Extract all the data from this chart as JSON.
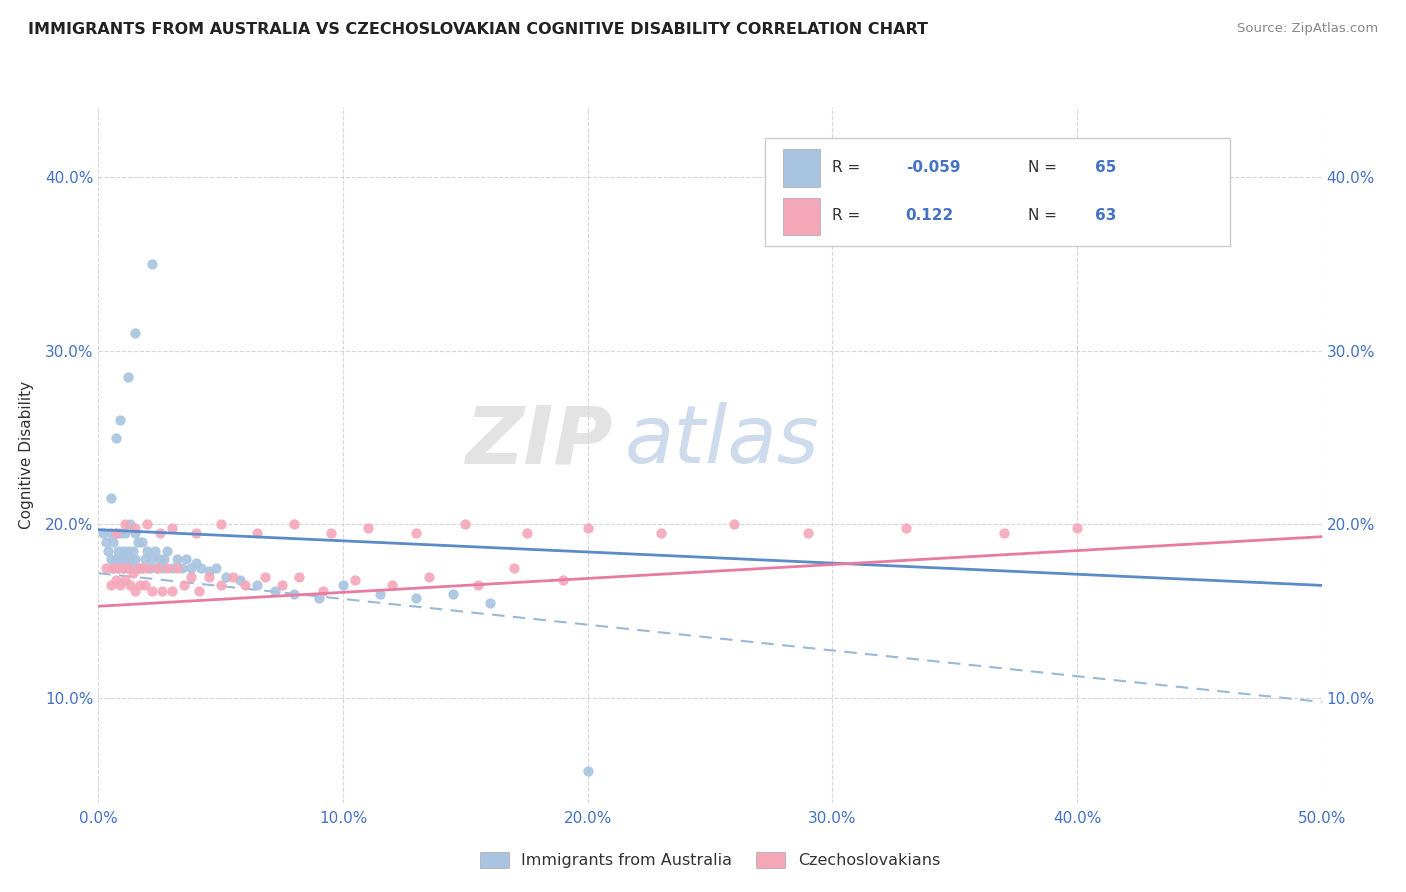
{
  "title": "IMMIGRANTS FROM AUSTRALIA VS CZECHOSLOVAKIAN COGNITIVE DISABILITY CORRELATION CHART",
  "source": "Source: ZipAtlas.com",
  "ylabel": "Cognitive Disability",
  "watermark_zip": "ZIP",
  "watermark_atlas": "atlas",
  "xlim": [
    0.0,
    0.5
  ],
  "ylim": [
    0.04,
    0.44
  ],
  "xticks": [
    0.0,
    0.1,
    0.2,
    0.3,
    0.4,
    0.5
  ],
  "yticks": [
    0.1,
    0.2,
    0.3,
    0.4
  ],
  "xtick_labels": [
    "0.0%",
    "10.0%",
    "20.0%",
    "30.0%",
    "40.0%",
    "50.0%"
  ],
  "ytick_labels": [
    "10.0%",
    "20.0%",
    "30.0%",
    "40.0%"
  ],
  "color_blue": "#a8c4e0",
  "color_pink": "#f4a7b9",
  "line_blue": "#5b8cc8",
  "line_pink": "#e87ca0",
  "line_dashed_color": "#9ab8d8",
  "background_color": "#ffffff",
  "grid_color": "#cccccc",
  "blue_line_x": [
    0.0,
    0.5
  ],
  "blue_line_y": [
    0.197,
    0.165
  ],
  "pink_line_x": [
    0.0,
    0.5
  ],
  "pink_line_y": [
    0.153,
    0.193
  ],
  "dash_line_x": [
    0.0,
    0.5
  ],
  "dash_line_y": [
    0.172,
    0.098
  ],
  "australia_x": [
    0.002,
    0.003,
    0.004,
    0.005,
    0.005,
    0.006,
    0.006,
    0.007,
    0.007,
    0.008,
    0.008,
    0.009,
    0.009,
    0.01,
    0.01,
    0.011,
    0.011,
    0.012,
    0.012,
    0.013,
    0.013,
    0.014,
    0.014,
    0.015,
    0.015,
    0.016,
    0.017,
    0.018,
    0.019,
    0.02,
    0.021,
    0.022,
    0.023,
    0.024,
    0.025,
    0.026,
    0.027,
    0.028,
    0.03,
    0.032,
    0.034,
    0.036,
    0.038,
    0.04,
    0.042,
    0.045,
    0.048,
    0.052,
    0.058,
    0.065,
    0.072,
    0.08,
    0.09,
    0.1,
    0.115,
    0.13,
    0.145,
    0.16,
    0.005,
    0.007,
    0.009,
    0.012,
    0.015,
    0.022,
    0.2
  ],
  "australia_y": [
    0.195,
    0.19,
    0.185,
    0.195,
    0.18,
    0.19,
    0.175,
    0.195,
    0.18,
    0.185,
    0.175,
    0.195,
    0.18,
    0.185,
    0.175,
    0.195,
    0.18,
    0.185,
    0.175,
    0.2,
    0.18,
    0.185,
    0.175,
    0.195,
    0.18,
    0.19,
    0.175,
    0.19,
    0.18,
    0.185,
    0.175,
    0.18,
    0.185,
    0.175,
    0.18,
    0.175,
    0.18,
    0.185,
    0.175,
    0.18,
    0.175,
    0.18,
    0.175,
    0.178,
    0.175,
    0.173,
    0.175,
    0.17,
    0.168,
    0.165,
    0.162,
    0.16,
    0.158,
    0.165,
    0.16,
    0.158,
    0.16,
    0.155,
    0.215,
    0.25,
    0.26,
    0.285,
    0.31,
    0.35,
    0.058
  ],
  "czech_x": [
    0.003,
    0.005,
    0.006,
    0.007,
    0.008,
    0.009,
    0.01,
    0.011,
    0.012,
    0.013,
    0.014,
    0.015,
    0.016,
    0.017,
    0.018,
    0.019,
    0.02,
    0.022,
    0.024,
    0.026,
    0.028,
    0.03,
    0.032,
    0.035,
    0.038,
    0.041,
    0.045,
    0.05,
    0.055,
    0.06,
    0.068,
    0.075,
    0.082,
    0.092,
    0.105,
    0.12,
    0.135,
    0.155,
    0.17,
    0.19,
    0.007,
    0.011,
    0.015,
    0.02,
    0.025,
    0.03,
    0.04,
    0.05,
    0.065,
    0.08,
    0.095,
    0.11,
    0.13,
    0.15,
    0.175,
    0.2,
    0.23,
    0.26,
    0.29,
    0.33,
    0.37,
    0.4,
    0.435
  ],
  "czech_y": [
    0.175,
    0.165,
    0.175,
    0.168,
    0.175,
    0.165,
    0.175,
    0.168,
    0.175,
    0.165,
    0.172,
    0.162,
    0.175,
    0.165,
    0.175,
    0.165,
    0.175,
    0.162,
    0.175,
    0.162,
    0.175,
    0.162,
    0.175,
    0.165,
    0.17,
    0.162,
    0.17,
    0.165,
    0.17,
    0.165,
    0.17,
    0.165,
    0.17,
    0.162,
    0.168,
    0.165,
    0.17,
    0.165,
    0.175,
    0.168,
    0.195,
    0.2,
    0.198,
    0.2,
    0.195,
    0.198,
    0.195,
    0.2,
    0.195,
    0.2,
    0.195,
    0.198,
    0.195,
    0.2,
    0.195,
    0.198,
    0.195,
    0.2,
    0.195,
    0.198,
    0.195,
    0.198,
    0.37
  ]
}
